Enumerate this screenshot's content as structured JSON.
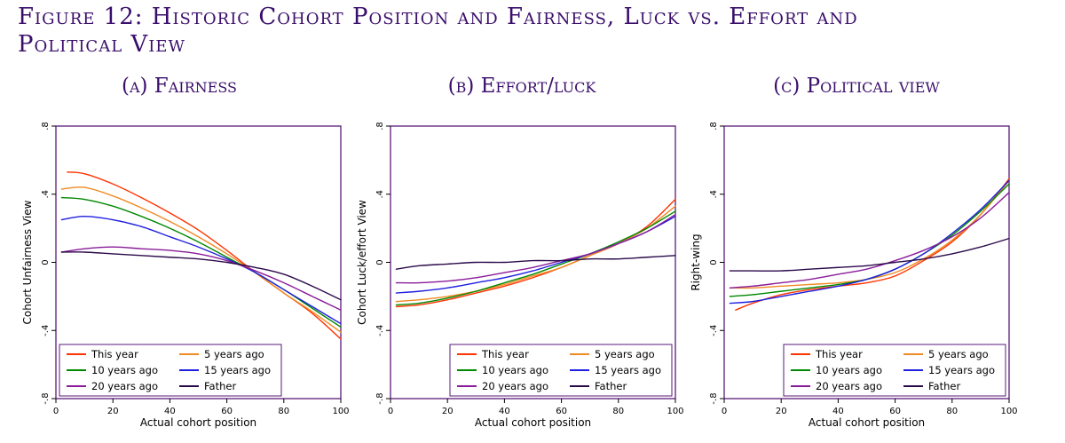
{
  "figure": {
    "title_line1": "Figure 12: Historic Cohort Position and Fairness, Luck vs. Effort and",
    "title_line2": "Political View"
  },
  "colors": {
    "This year": "#ff3300",
    "5 years ago": "#f08a24",
    "10 years ago": "#008800",
    "15 years ago": "#1f1fe0",
    "20 years ago": "#8a1c9a",
    "Father": "#2b0a4a",
    "frame": "#5a1a7a"
  },
  "chart_data": [
    {
      "panel_title": "(a) Fairness",
      "type": "line",
      "xlabel": "Actual cohort position",
      "ylabel": "Cohort Unfairness View",
      "xlim": [
        0,
        100
      ],
      "ylim": [
        -0.8,
        0.8
      ],
      "xticks": [
        "0",
        "20",
        "40",
        "60",
        "80",
        "100"
      ],
      "yticks": [
        "-.8",
        "-.4",
        "0",
        ".4",
        ".8"
      ],
      "legend_position": "bottom-left",
      "series": [
        {
          "name": "This year",
          "x": [
            4,
            10,
            20,
            30,
            40,
            50,
            60,
            70,
            80,
            90,
            100
          ],
          "y": [
            0.53,
            0.52,
            0.46,
            0.38,
            0.29,
            0.19,
            0.07,
            -0.06,
            -0.18,
            -0.3,
            -0.45
          ]
        },
        {
          "name": "5 years ago",
          "x": [
            2,
            10,
            20,
            30,
            40,
            50,
            60,
            70,
            80,
            90,
            100
          ],
          "y": [
            0.43,
            0.44,
            0.39,
            0.32,
            0.24,
            0.15,
            0.05,
            -0.06,
            -0.18,
            -0.29,
            -0.41
          ]
        },
        {
          "name": "10 years ago",
          "x": [
            2,
            10,
            20,
            30,
            40,
            50,
            60,
            70,
            80,
            90,
            100
          ],
          "y": [
            0.38,
            0.37,
            0.33,
            0.27,
            0.2,
            0.12,
            0.03,
            -0.06,
            -0.16,
            -0.27,
            -0.38
          ]
        },
        {
          "name": "15 years ago",
          "x": [
            2,
            10,
            20,
            30,
            40,
            50,
            60,
            70,
            80,
            90,
            100
          ],
          "y": [
            0.25,
            0.27,
            0.25,
            0.21,
            0.15,
            0.09,
            0.02,
            -0.06,
            -0.16,
            -0.26,
            -0.36
          ]
        },
        {
          "name": "20 years ago",
          "x": [
            2,
            10,
            20,
            30,
            40,
            50,
            60,
            70,
            80,
            90,
            100
          ],
          "y": [
            0.06,
            0.08,
            0.09,
            0.08,
            0.07,
            0.05,
            0.01,
            -0.05,
            -0.12,
            -0.2,
            -0.28
          ]
        },
        {
          "name": "Father",
          "x": [
            2,
            10,
            20,
            30,
            40,
            50,
            60,
            70,
            80,
            90,
            100
          ],
          "y": [
            0.06,
            0.06,
            0.05,
            0.04,
            0.03,
            0.02,
            0.0,
            -0.03,
            -0.07,
            -0.14,
            -0.22
          ]
        }
      ]
    },
    {
      "panel_title": "(b) Effort/luck",
      "type": "line",
      "xlabel": "Actual cohort position",
      "ylabel": "Cohort Luck/effort View",
      "xlim": [
        0,
        100
      ],
      "ylim": [
        -0.8,
        0.8
      ],
      "xticks": [
        "0",
        "20",
        "40",
        "60",
        "80",
        "100"
      ],
      "yticks": [
        "-.8",
        "-.4",
        "0",
        ".4",
        ".8"
      ],
      "legend_position": "bottom-right",
      "series": [
        {
          "name": "This year",
          "x": [
            2,
            10,
            20,
            30,
            40,
            50,
            60,
            70,
            80,
            90,
            100
          ],
          "y": [
            -0.26,
            -0.25,
            -0.22,
            -0.18,
            -0.14,
            -0.09,
            -0.03,
            0.04,
            0.11,
            0.21,
            0.37
          ]
        },
        {
          "name": "5 years ago",
          "x": [
            2,
            10,
            20,
            30,
            40,
            50,
            60,
            70,
            80,
            90,
            100
          ],
          "y": [
            -0.23,
            -0.22,
            -0.2,
            -0.17,
            -0.13,
            -0.08,
            -0.03,
            0.04,
            0.11,
            0.2,
            0.33
          ]
        },
        {
          "name": "10 years ago",
          "x": [
            2,
            10,
            20,
            30,
            40,
            50,
            60,
            70,
            80,
            90,
            100
          ],
          "y": [
            -0.25,
            -0.24,
            -0.21,
            -0.17,
            -0.12,
            -0.07,
            -0.01,
            0.05,
            0.12,
            0.2,
            0.3
          ]
        },
        {
          "name": "15 years ago",
          "x": [
            2,
            10,
            20,
            30,
            40,
            50,
            60,
            70,
            80,
            90,
            100
          ],
          "y": [
            -0.18,
            -0.17,
            -0.15,
            -0.12,
            -0.09,
            -0.05,
            0.0,
            0.05,
            0.11,
            0.18,
            0.27
          ]
        },
        {
          "name": "20 years ago",
          "x": [
            2,
            10,
            20,
            30,
            40,
            50,
            60,
            70,
            80,
            90,
            100
          ],
          "y": [
            -0.12,
            -0.12,
            -0.11,
            -0.09,
            -0.06,
            -0.03,
            0.01,
            0.05,
            0.11,
            0.18,
            0.28
          ]
        },
        {
          "name": "Father",
          "x": [
            2,
            10,
            20,
            30,
            40,
            50,
            60,
            70,
            80,
            90,
            100
          ],
          "y": [
            -0.04,
            -0.02,
            -0.01,
            0.0,
            0.0,
            0.01,
            0.01,
            0.02,
            0.02,
            0.03,
            0.04
          ]
        }
      ]
    },
    {
      "panel_title": "(c) Political view",
      "type": "line",
      "xlabel": "Actual cohort position",
      "ylabel": "Right-wing",
      "xlim": [
        0,
        100
      ],
      "ylim": [
        -0.8,
        0.8
      ],
      "xticks": [
        "0",
        "20",
        "40",
        "60",
        "80",
        "100"
      ],
      "yticks": [
        "-.8",
        "-.4",
        "0",
        ".4",
        ".8"
      ],
      "legend_position": "bottom-right",
      "series": [
        {
          "name": "This year",
          "x": [
            4,
            10,
            20,
            30,
            40,
            50,
            60,
            70,
            80,
            90,
            100
          ],
          "y": [
            -0.28,
            -0.24,
            -0.19,
            -0.16,
            -0.14,
            -0.12,
            -0.08,
            0.01,
            0.12,
            0.28,
            0.49
          ]
        },
        {
          "name": "5 years ago",
          "x": [
            2,
            10,
            20,
            30,
            40,
            50,
            60,
            70,
            80,
            90,
            100
          ],
          "y": [
            -0.15,
            -0.15,
            -0.14,
            -0.13,
            -0.12,
            -0.1,
            -0.06,
            0.02,
            0.13,
            0.28,
            0.48
          ]
        },
        {
          "name": "10 years ago",
          "x": [
            2,
            10,
            20,
            30,
            40,
            50,
            60,
            70,
            80,
            90,
            100
          ],
          "y": [
            -0.2,
            -0.19,
            -0.17,
            -0.15,
            -0.13,
            -0.1,
            -0.04,
            0.05,
            0.16,
            0.3,
            0.46
          ]
        },
        {
          "name": "15 years ago",
          "x": [
            2,
            10,
            20,
            30,
            40,
            50,
            60,
            70,
            80,
            90,
            100
          ],
          "y": [
            -0.24,
            -0.23,
            -0.2,
            -0.17,
            -0.14,
            -0.1,
            -0.04,
            0.05,
            0.17,
            0.31,
            0.48
          ]
        },
        {
          "name": "20 years ago",
          "x": [
            2,
            10,
            20,
            30,
            40,
            50,
            60,
            70,
            80,
            90,
            100
          ],
          "y": [
            -0.15,
            -0.14,
            -0.12,
            -0.1,
            -0.07,
            -0.04,
            0.01,
            0.07,
            0.15,
            0.26,
            0.41
          ]
        },
        {
          "name": "Father",
          "x": [
            2,
            10,
            20,
            30,
            40,
            50,
            60,
            70,
            80,
            90,
            100
          ],
          "y": [
            -0.05,
            -0.05,
            -0.05,
            -0.04,
            -0.03,
            -0.02,
            0.0,
            0.02,
            0.05,
            0.09,
            0.14
          ]
        }
      ]
    }
  ]
}
